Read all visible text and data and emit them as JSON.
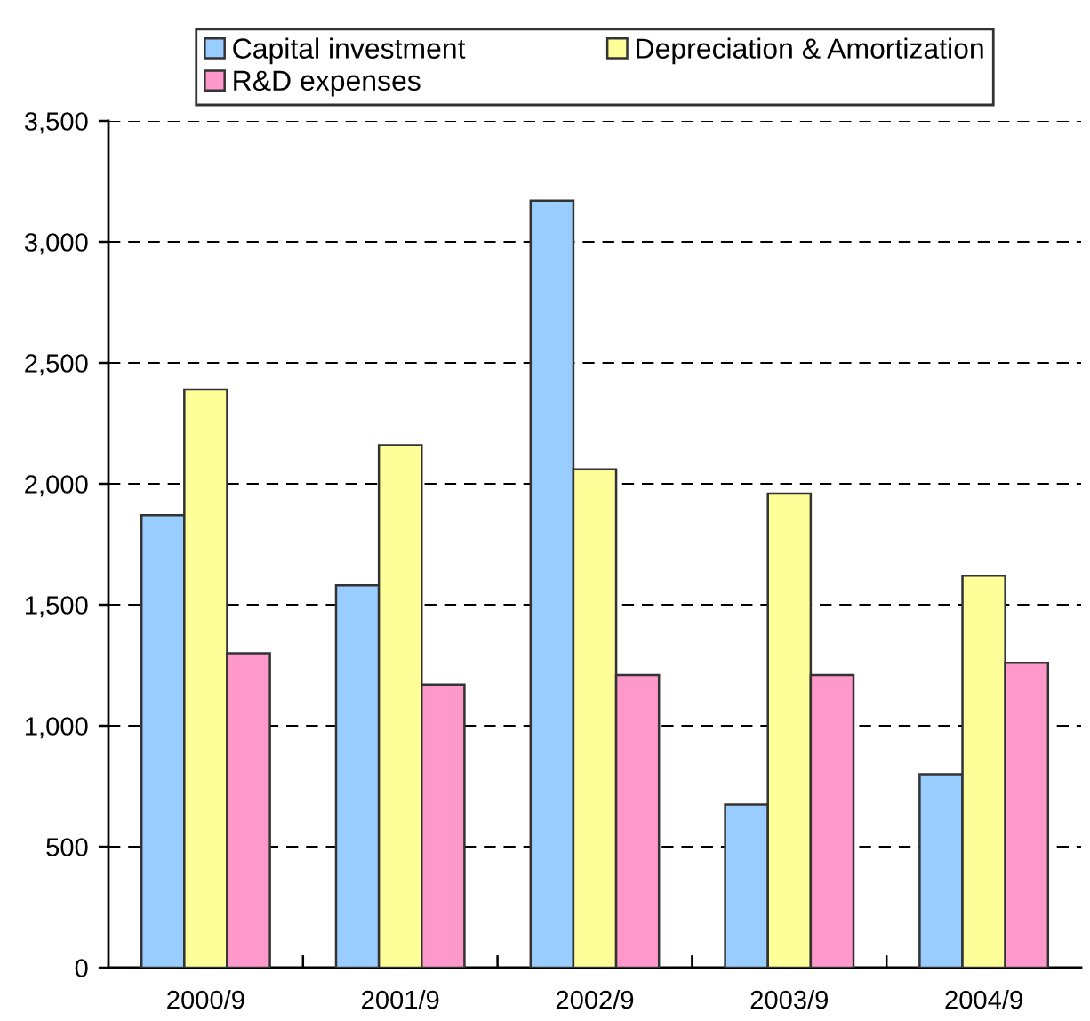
{
  "chart_data": {
    "type": "bar",
    "categories": [
      "2000/9",
      "2001/9",
      "2002/9",
      "2003/9",
      "2004/9"
    ],
    "series": [
      {
        "name": "Capital investment",
        "color": "#99ccff",
        "values": [
          1870,
          1580,
          3170,
          675,
          800
        ]
      },
      {
        "name": "Depreciation & Amortization",
        "color": "#ffff99",
        "values": [
          2390,
          2160,
          2060,
          1960,
          1620
        ]
      },
      {
        "name": "R&D expenses",
        "color": "#ff99cc",
        "values": [
          1300,
          1170,
          1210,
          1210,
          1260
        ]
      }
    ],
    "ylim": [
      0,
      3500
    ],
    "yticks": [
      0,
      500,
      {
        "value": 1000,
        "label": "1,000"
      },
      {
        "value": 1500,
        "label": "1,500"
      },
      {
        "value": 2000,
        "label": "2,000"
      },
      {
        "value": 2500,
        "label": "2,500"
      },
      {
        "value": 3000,
        "label": "3,000"
      },
      {
        "value": 3500,
        "label": "3,500"
      }
    ],
    "grid": "y",
    "legend": "top"
  }
}
